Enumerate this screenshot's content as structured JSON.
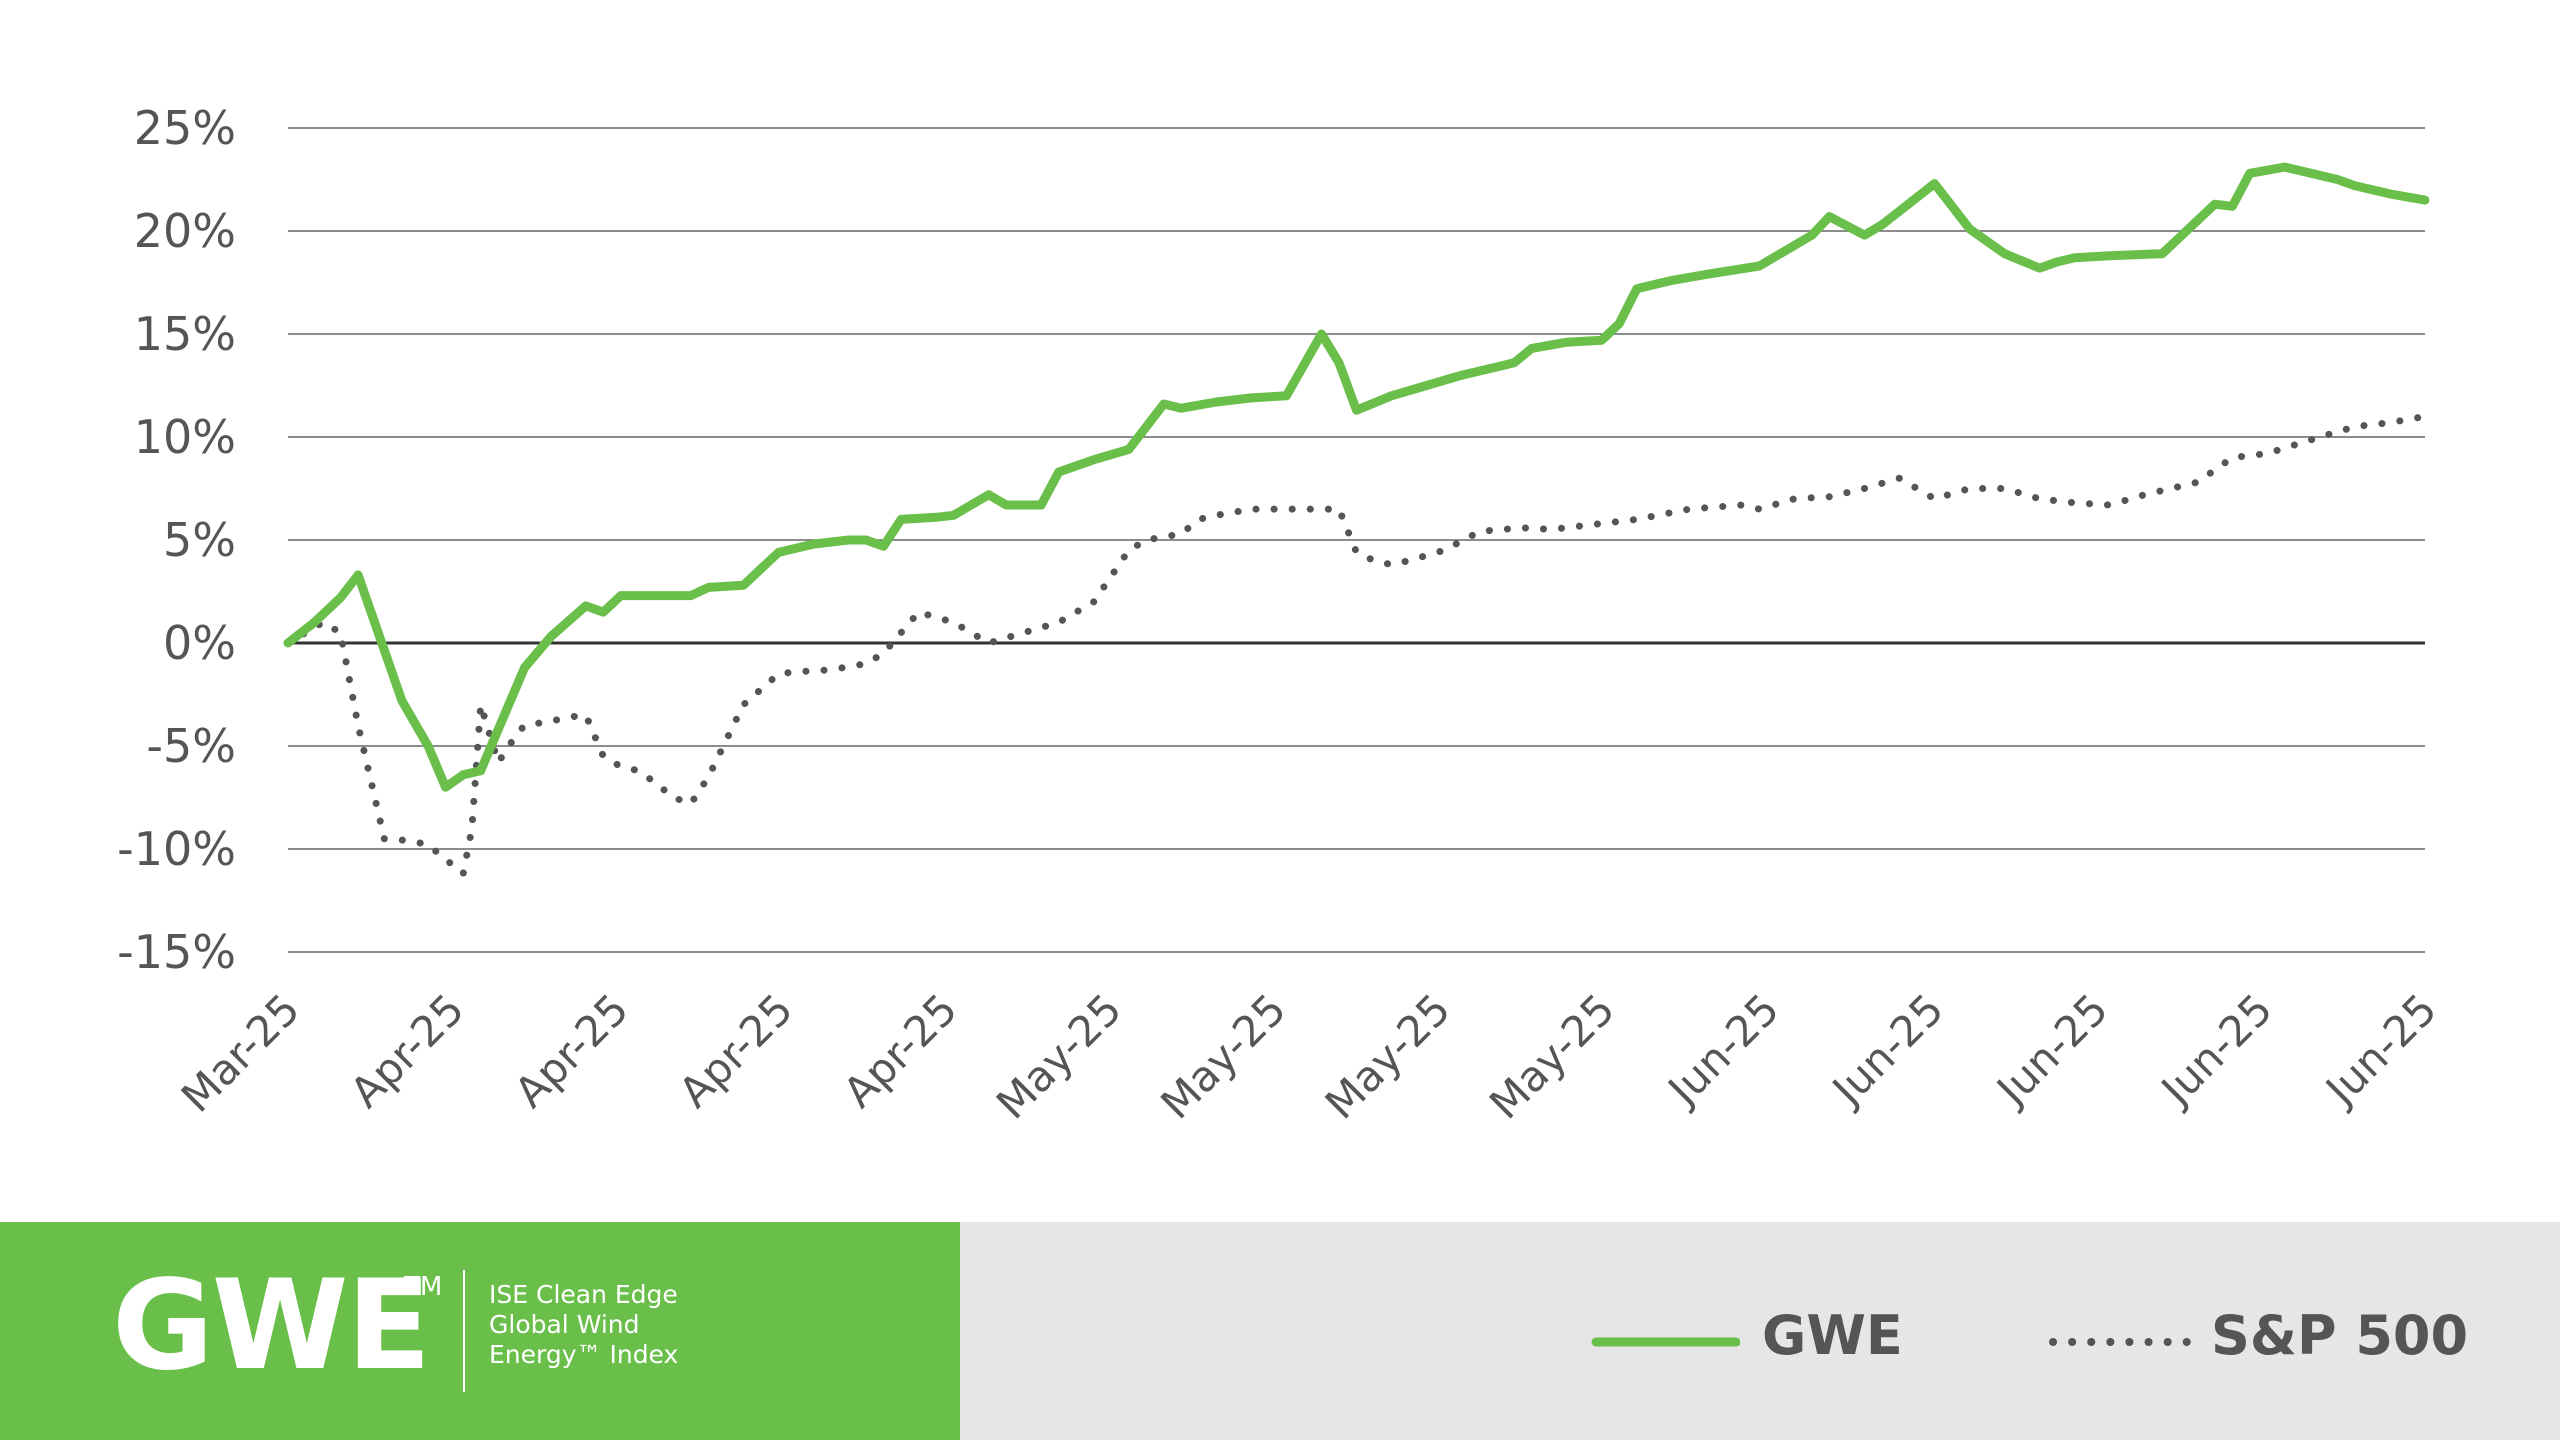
{
  "colors": {
    "gwe": "#6abf4b",
    "sp500": "#555555",
    "grid": "#666666",
    "zero": "#333333",
    "footer_bg": "#e6e6e6",
    "brand_bg": "#6abf4b"
  },
  "footer": {
    "ticker": "GWE",
    "trademark": "TM",
    "desc_lines": [
      "ISE Clean Edge",
      "Global Wind",
      "Energy™ Index"
    ]
  },
  "legend": {
    "gwe_label": "GWE",
    "sp500_label": "S&P 500"
  },
  "chart_data": {
    "type": "line",
    "x_tick_labels": [
      "Mar-25",
      "Apr-25",
      "Apr-25",
      "Apr-25",
      "Apr-25",
      "May-25",
      "May-25",
      "May-25",
      "May-25",
      "Jun-25",
      "Jun-25",
      "Jun-25",
      "Jun-25",
      "Jun-25"
    ],
    "y_tick_labels": [
      "25%",
      "20%",
      "15%",
      "10%",
      "5%",
      "0%",
      "-5%",
      "-10%",
      "-15%"
    ],
    "y_ticks": [
      25,
      20,
      15,
      10,
      5,
      0,
      -5,
      -10,
      -15
    ],
    "ylim": [
      -15,
      25
    ],
    "grid": "horizontal",
    "legend_position": "bottom-right",
    "series": [
      {
        "name": "GWE",
        "style": "solid",
        "x": [
          0,
          1.5,
          3,
          4,
          6.5,
          8,
          9,
          10,
          11,
          13.5,
          15,
          17,
          18,
          19,
          21,
          22,
          23,
          24,
          26,
          28,
          30,
          32,
          33,
          34,
          35,
          37,
          38,
          40,
          41,
          43,
          44,
          46,
          48,
          50,
          51,
          53,
          55,
          57,
          59,
          60,
          61,
          63,
          65,
          67,
          69,
          70,
          71,
          73,
          75,
          76,
          77,
          79,
          81,
          84,
          87,
          88,
          90,
          91,
          94,
          96,
          98,
          100,
          101,
          102,
          104,
          107,
          110,
          111,
          112,
          114,
          117,
          118,
          120,
          122
        ],
        "values": [
          0,
          1,
          2.2,
          3.3,
          -2.8,
          -5,
          -7,
          -6.4,
          -6.2,
          -1.2,
          0.3,
          1.8,
          1.5,
          2.3,
          2.3,
          2.3,
          2.3,
          2.7,
          2.8,
          4.4,
          4.8,
          5,
          5,
          4.7,
          6,
          6.1,
          6.2,
          7.2,
          6.7,
          6.7,
          8.3,
          8.9,
          9.4,
          11.6,
          11.4,
          11.7,
          11.9,
          12,
          15,
          13.6,
          11.3,
          12,
          12.5,
          13,
          13.4,
          13.6,
          14.3,
          14.6,
          14.7,
          15.5,
          17.2,
          17.6,
          17.9,
          18.3,
          19.8,
          20.7,
          19.8,
          20.3,
          22.3,
          20.1,
          18.9,
          18.2,
          18.5,
          18.7,
          18.8,
          18.9,
          21.3,
          21.2,
          22.8,
          23.1,
          22.5,
          22.2,
          21.8,
          21.5
        ]
      },
      {
        "name": "S&P 500",
        "style": "dotted",
        "x": [
          0,
          2,
          3,
          4,
          5.5,
          7,
          8,
          10,
          10.5,
          11,
          12,
          13,
          13.5,
          15,
          16,
          17,
          18,
          19,
          20,
          21,
          22,
          23,
          24,
          26,
          28,
          29,
          31,
          33,
          34,
          36,
          38,
          40,
          42,
          44,
          46,
          48,
          49,
          51,
          52,
          53,
          55,
          57,
          60,
          61,
          62,
          63,
          64,
          66,
          68,
          69,
          71,
          72,
          75,
          77,
          80,
          83,
          84,
          86,
          88,
          90,
          92,
          94,
          96,
          98,
          100,
          102,
          104,
          106,
          109,
          111,
          113,
          116,
          118,
          120,
          122
        ],
        "values": [
          0,
          1,
          0.5,
          -4,
          -9.5,
          -9.6,
          -9.8,
          -11.2,
          -9,
          -3,
          -5.8,
          -4.5,
          -4,
          -3.8,
          -3.6,
          -3.5,
          -5.5,
          -6,
          -6.2,
          -6.8,
          -7.5,
          -7.8,
          -6.5,
          -3,
          -1.5,
          -1.4,
          -1.3,
          -1,
          -0.5,
          1.5,
          1,
          0,
          0.5,
          1,
          2,
          4.5,
          5,
          5.3,
          6,
          6.2,
          6.5,
          6.5,
          6.5,
          4.4,
          4,
          3.8,
          4,
          4.5,
          5.4,
          5.5,
          5.6,
          5.5,
          5.8,
          6,
          6.5,
          6.7,
          6.5,
          7,
          7.1,
          7.5,
          8,
          7,
          7.5,
          7.5,
          7,
          6.8,
          6.7,
          7.2,
          7.8,
          9,
          9.2,
          10,
          10.5,
          10.7,
          11
        ]
      }
    ]
  }
}
